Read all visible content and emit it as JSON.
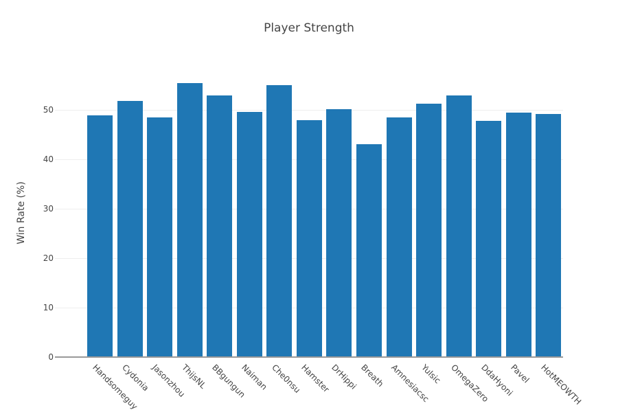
{
  "chart_data": {
    "type": "bar",
    "title": "Player Strength",
    "xlabel": "",
    "ylabel": "Win Rate (%)",
    "ylim": [
      0,
      61
    ],
    "yticks": [
      0,
      10,
      20,
      30,
      40,
      50
    ],
    "grid": true,
    "legend": null,
    "bar_color": "#1f77b4",
    "categories": [
      "Handsomeguy",
      "Cydonia",
      "Jasonzhou",
      "ThijsNL",
      "BBgungun",
      "Naiman",
      "Che0nsu",
      "Hamster",
      "DrHippi",
      "Breath",
      "Amnesiacsc",
      "Yulsic",
      "OmegaZero",
      "DdaHyoni",
      "Pavel",
      "HotMEOWTH"
    ],
    "values": [
      48.9,
      51.8,
      48.5,
      55.4,
      52.9,
      49.6,
      55.0,
      47.9,
      50.2,
      43.1,
      48.5,
      51.3,
      52.9,
      47.8,
      49.4,
      49.1
    ]
  }
}
